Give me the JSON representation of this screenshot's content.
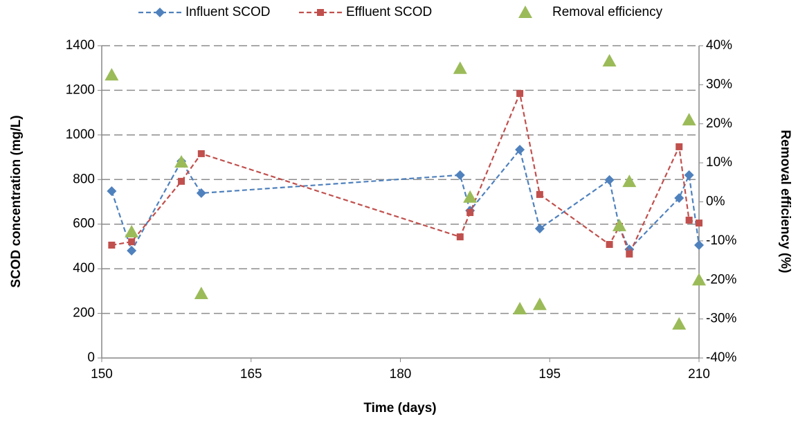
{
  "chart_data": {
    "type": "line",
    "xlabel": "Time (days)",
    "ylabel": "SCOD concentration (mg/L)",
    "y2label": "Removal efficiency (%)",
    "x": [
      151,
      153,
      158,
      160,
      186,
      187,
      192,
      194,
      201,
      202,
      203,
      208,
      209,
      210
    ],
    "series": [
      {
        "name": "Influent SCOD",
        "color": "#4f81bd",
        "marker": "diamond",
        "line": true,
        "values": [
          748,
          481,
          882,
          739,
          820,
          661,
          934,
          580,
          798,
          587,
          487,
          717,
          820,
          506
        ]
      },
      {
        "name": "Effluent SCOD",
        "color": "#c0504d",
        "marker": "square",
        "line": true,
        "values": [
          506,
          521,
          792,
          916,
          543,
          652,
          1186,
          733,
          509,
          590,
          466,
          947,
          618,
          605
        ]
      },
      {
        "name": "Removal efficiency",
        "color": "#9bbb59",
        "marker": "triangle",
        "line": false,
        "axis": "y2",
        "values": [
          32.5,
          -7.7,
          10.2,
          -23.5,
          34.2,
          1.2,
          -27.4,
          -26.3,
          36.1,
          -6.1,
          5.2,
          -31.3,
          21,
          -20
        ]
      }
    ],
    "xlim": [
      150,
      210
    ],
    "xticks": [
      150,
      165,
      180,
      195,
      210
    ],
    "ylim": [
      0,
      1400
    ],
    "yticks": [
      0,
      200,
      400,
      600,
      800,
      1000,
      1200,
      1400
    ],
    "y2lim": [
      -40,
      40
    ],
    "y2ticks": [
      {
        "value": -40,
        "label": "-40%"
      },
      {
        "value": -30,
        "label": "-30%"
      },
      {
        "value": -20,
        "label": "-20%"
      },
      {
        "value": -10,
        "label": "-10%"
      },
      {
        "value": 0,
        "label": "0%"
      },
      {
        "value": 10,
        "label": "10%"
      },
      {
        "value": 20,
        "label": "20%"
      },
      {
        "value": 30,
        "label": "30%"
      },
      {
        "value": 40,
        "label": "40%"
      }
    ],
    "grid": true,
    "legend": "top"
  }
}
